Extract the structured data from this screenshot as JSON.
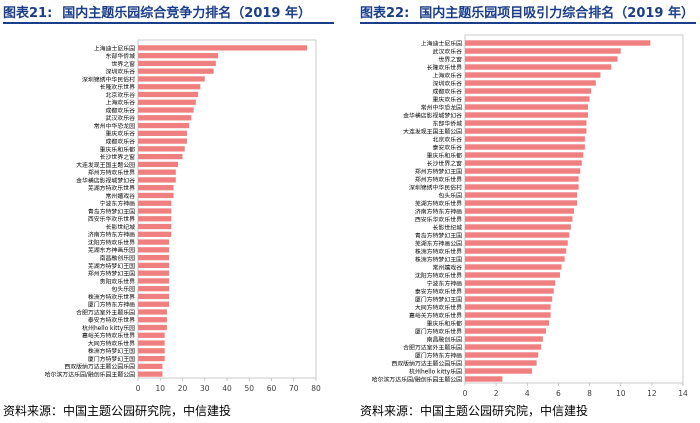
{
  "colors": {
    "bar": "#f08080",
    "title": "#1b3e8a",
    "axis": "#bfbfbf",
    "text": "#404040"
  },
  "left": {
    "tag": "图表21:",
    "title": "国内主题乐园综合竞争力排名（2019 年）",
    "source": "资料来源：中国主题公园研究院，中信建投"
  },
  "right": {
    "tag": "图表22:",
    "title": "国内主题乐园项目吸引力综合排名（2019 年）",
    "source": "资料来源：中国主题公园研究院，中信建投"
  },
  "chart_data": [
    {
      "type": "bar",
      "orientation": "horizontal",
      "xlim": [
        0,
        80
      ],
      "xticks": [
        "0",
        "10",
        "20",
        "30",
        "40",
        "50",
        "60",
        "70",
        "80"
      ],
      "categories": [
        "上海迪士尼乐园",
        "东部华侨城",
        "世界之窗",
        "深圳欢乐谷",
        "深圳锦绣中华民俗村",
        "长隆欢乐世界",
        "北京欢乐谷",
        "上海欢乐谷",
        "成都欢乐谷",
        "武汉欢乐谷",
        "常州中华恐龙园",
        "重庆欢乐谷",
        "成都欢乐谷",
        "重庆乐和乐都",
        "长沙世界之窗",
        "大连发现王国主题公园",
        "郑州方特欢乐世界",
        "金华横店影视城梦幻谷",
        "芜湖方特欢乐世界",
        "常州嬉戏谷",
        "宁波东方神画",
        "青岛方特梦幻王国",
        "西安乐华欢乐世界",
        "长影世纪城",
        "济南方特东方神画",
        "沈阳方特欢乐世界",
        "芜湖东方神画乐园",
        "南昌融创乐园",
        "芜湖方特梦幻王国",
        "郑州方特梦幻王国",
        "贵阳欢乐世界",
        "包头乐园",
        "株洲方特欢乐世界",
        "厦门方特东方神画",
        "合肥万达室外主题乐园",
        "泰安方特欢乐世界",
        "杭州hello kitty乐园",
        "嘉峪关方特欢乐世界",
        "大同方特欢乐世界",
        "株洲方特梦幻王国",
        "厦门方特梦幻王国",
        "西双版纳万达主题公园乐园",
        "哈尔滨万达乐园/融创乐园主题公园"
      ],
      "values": [
        76,
        36,
        35,
        34,
        30,
        28,
        27,
        26,
        25,
        24,
        23,
        22,
        22,
        21,
        20,
        18,
        17,
        17,
        16,
        16,
        15,
        15,
        15,
        15,
        15,
        14,
        14,
        14,
        14,
        14,
        14,
        14,
        14,
        14,
        13,
        13,
        13,
        12,
        12,
        12,
        12,
        11,
        11
      ]
    },
    {
      "type": "bar",
      "orientation": "horizontal",
      "xlim": [
        0,
        14
      ],
      "xticks": [
        "0",
        "2",
        "4",
        "6",
        "8",
        "10",
        "12",
        "14"
      ],
      "categories": [
        "上海迪士尼乐园",
        "武汉欢乐谷",
        "世界之窗",
        "长隆欢乐世界",
        "上海欢乐谷",
        "深圳欢乐谷",
        "成都欢乐谷",
        "重庆欢乐谷",
        "常州中华恐龙园",
        "金华横店影视城梦幻谷",
        "东部华侨城",
        "大连发现王国主题公园",
        "北京欢乐谷",
        "泰安欢乐谷",
        "重庆乐和乐都",
        "长沙世界之窗",
        "郑州方特梦幻王国",
        "郑州方特欢乐世界",
        "深圳锦绣中华民俗村",
        "包头乐园",
        "芜湖方特欢乐世界",
        "济南方特东方神画",
        "西安乐华欢乐世界",
        "长影世纪城",
        "青岛方特梦幻王国",
        "芜湖东方神画公园",
        "株洲方特欢乐世界",
        "株洲方特梦幻王国",
        "常州嬉戏谷",
        "沈阳方特欢乐世界",
        "宁波东方神画",
        "泰安方特欢乐世界",
        "厦门方特梦幻王国",
        "大同方特欢乐世界",
        "嘉峪关方特欢乐世界",
        "重庆乐和乐都",
        "厦门方特欢乐世界",
        "南昌融创乐园",
        "合肥万达室外主题乐园",
        "厦门方特东方神画",
        "西双版纳万达主题公园乐园",
        "杭州hello kitty乐园",
        "哈尔滨万达乐园/融创乐园主题公园"
      ],
      "values": [
        11.9,
        10.0,
        9.8,
        9.4,
        8.7,
        8.4,
        8.1,
        8.0,
        7.9,
        7.9,
        7.8,
        7.8,
        7.7,
        7.7,
        7.6,
        7.5,
        7.4,
        7.3,
        7.3,
        7.2,
        7.2,
        7.0,
        6.9,
        6.8,
        6.7,
        6.6,
        6.5,
        6.4,
        6.2,
        6.1,
        5.8,
        5.7,
        5.6,
        5.5,
        5.5,
        5.4,
        5.2,
        5.0,
        4.9,
        4.7,
        4.6,
        4.3,
        2.4
      ]
    }
  ]
}
